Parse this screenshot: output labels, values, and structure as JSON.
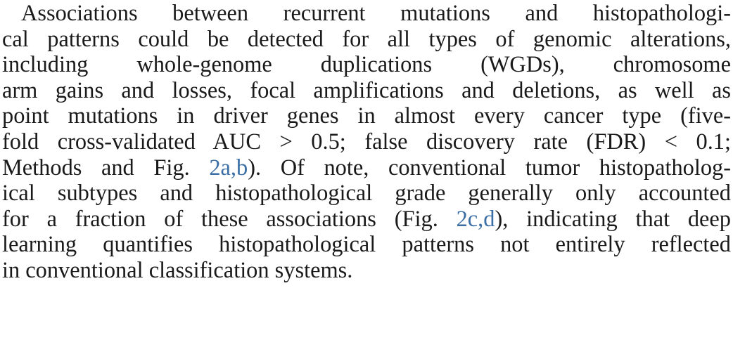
{
  "paragraph": {
    "lines": [
      [
        {
          "t": "Associations between recurrent mutations and histopathologi-"
        }
      ],
      [
        {
          "t": "cal patterns could be detected for all types of genomic alterations,"
        }
      ],
      [
        {
          "t": "including whole-genome duplications (WGDs), chromosome"
        }
      ],
      [
        {
          "t": "arm gains and losses, focal amplifications and deletions, as well as"
        }
      ],
      [
        {
          "t": "point mutations in driver genes in almost every cancer type (five-"
        }
      ],
      [
        {
          "t": "fold cross-validated AUC > 0.5; false discovery rate (FDR) < 0.1;"
        }
      ],
      [
        {
          "t": "Methods and Fig. "
        },
        {
          "t": "2a,b",
          "ref": true
        },
        {
          "t": "). Of note, conventional tumor histopatholog-"
        }
      ],
      [
        {
          "t": "ical subtypes and histopathological grade generally only accounted"
        }
      ],
      [
        {
          "t": "for a fraction of these associations (Fig. "
        },
        {
          "t": "2c,d",
          "ref": true
        },
        {
          "t": "), indicating that deep"
        }
      ],
      [
        {
          "t": "learning quantifies histopathological patterns not entirely reflected"
        }
      ],
      [
        {
          "t": "in conventional classification systems."
        }
      ]
    ]
  },
  "colors": {
    "text": "#1a1a1a",
    "reference_link": "#3a6ea5",
    "background": "#ffffff"
  }
}
